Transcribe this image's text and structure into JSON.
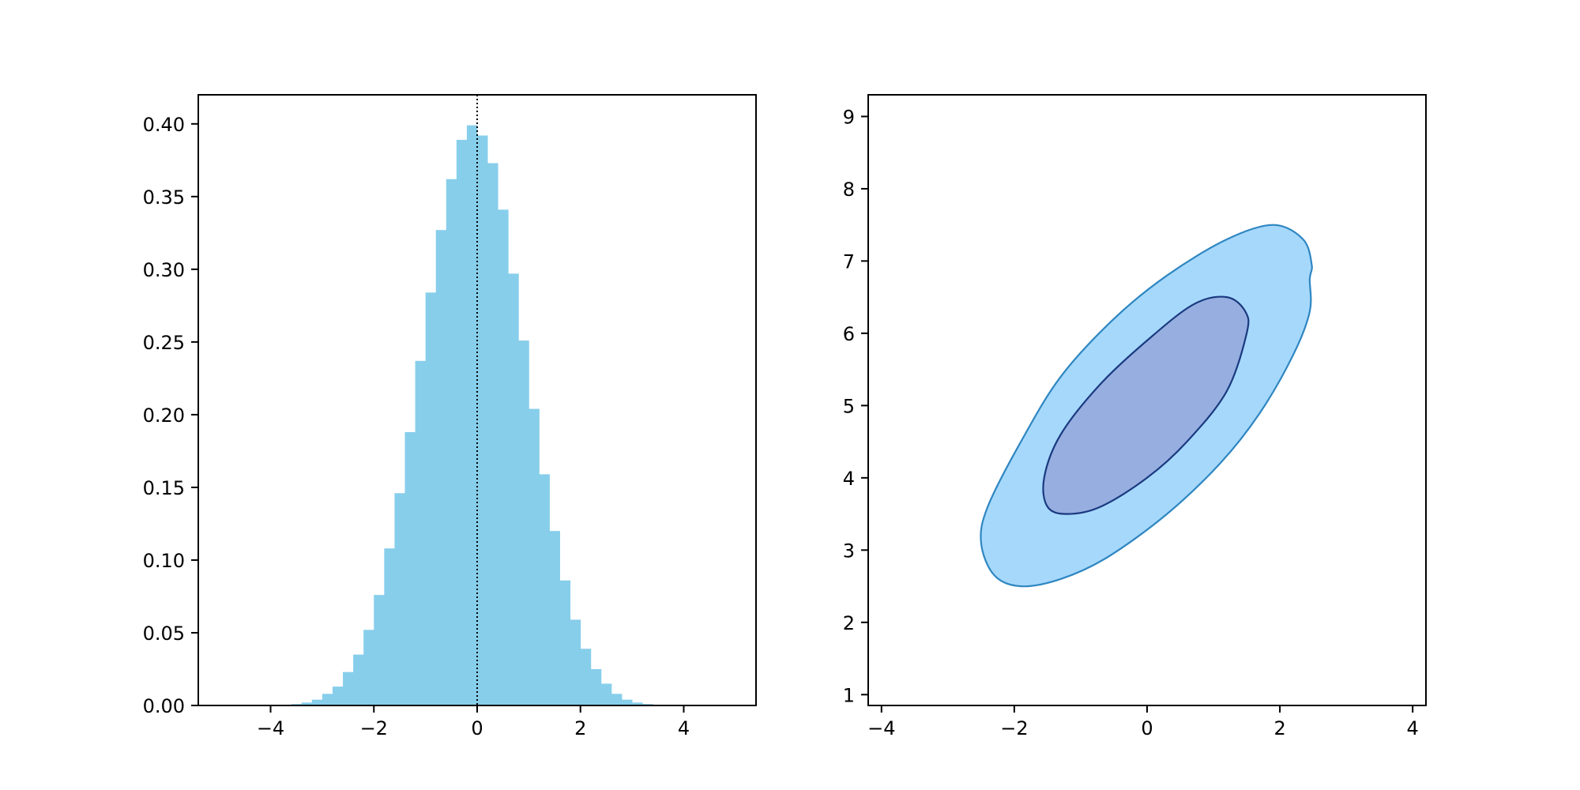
{
  "colors": {
    "histogram_fill": "#87ceeb",
    "median_line": "#000000",
    "contour_outer_fill": "#a6d8fb",
    "contour_outer_stroke": "#2e86c1",
    "contour_inner_fill": "#97afe0",
    "contour_inner_stroke": "#1a3a80"
  },
  "chart_data": [
    {
      "type": "bar",
      "subtype": "histogram",
      "title": "",
      "xlabel": "",
      "ylabel": "",
      "xlim": [
        -5.4,
        5.4
      ],
      "ylim": [
        0,
        0.42
      ],
      "x_ticks": [
        -4,
        -2,
        0,
        2,
        4
      ],
      "x_tick_labels": [
        "−4",
        "−2",
        "0",
        "2",
        "4"
      ],
      "y_ticks": [
        0,
        0.05,
        0.1,
        0.15,
        0.2,
        0.25,
        0.3,
        0.35,
        0.4
      ],
      "y_tick_labels": [
        "0.00",
        "0.05",
        "0.10",
        "0.15",
        "0.20",
        "0.25",
        "0.30",
        "0.35",
        "0.40"
      ],
      "bin_width": 0.2,
      "bin_edges_start": -3.6,
      "values": [
        0.001,
        0.002,
        0.004,
        0.008,
        0.013,
        0.023,
        0.035,
        0.052,
        0.076,
        0.108,
        0.146,
        0.188,
        0.237,
        0.284,
        0.327,
        0.362,
        0.389,
        0.399,
        0.392,
        0.373,
        0.341,
        0.297,
        0.251,
        0.204,
        0.159,
        0.12,
        0.086,
        0.059,
        0.039,
        0.025,
        0.015,
        0.008,
        0.004,
        0.002,
        0.001,
        0.0005
      ],
      "vertical_line": {
        "x": 0,
        "style": "dotted"
      },
      "grid": false
    },
    {
      "type": "contour",
      "title": "",
      "xlabel": "",
      "ylabel": "",
      "xlim": [
        -4.2,
        4.2
      ],
      "ylim": [
        0.85,
        9.3
      ],
      "x_ticks": [
        -4,
        -2,
        0,
        2,
        4
      ],
      "x_tick_labels": [
        "−4",
        "−2",
        "0",
        "2",
        "4"
      ],
      "y_ticks": [
        1,
        2,
        3,
        4,
        5,
        6,
        7,
        8,
        9
      ],
      "y_tick_labels": [
        "1",
        "2",
        "3",
        "4",
        "5",
        "6",
        "7",
        "8",
        "9"
      ],
      "grid": false,
      "levels": [
        {
          "name": "outer",
          "points": [
            [
              2.45,
              6.75
            ],
            [
              2.48,
              6.95
            ],
            [
              2.35,
              7.3
            ],
            [
              1.9,
              7.5
            ],
            [
              1.2,
              7.3
            ],
            [
              0.3,
              6.8
            ],
            [
              -0.5,
              6.2
            ],
            [
              -1.3,
              5.4
            ],
            [
              -1.9,
              4.5
            ],
            [
              -2.4,
              3.6
            ],
            [
              -2.5,
              3.1
            ],
            [
              -2.3,
              2.65
            ],
            [
              -1.9,
              2.5
            ],
            [
              -1.3,
              2.6
            ],
            [
              -0.6,
              2.9
            ],
            [
              0.3,
              3.5
            ],
            [
              1.1,
              4.2
            ],
            [
              1.7,
              4.9
            ],
            [
              2.2,
              5.7
            ],
            [
              2.45,
              6.3
            ]
          ]
        },
        {
          "name": "inner",
          "points": [
            [
              1.5,
              6.0
            ],
            [
              1.48,
              6.3
            ],
            [
              1.2,
              6.5
            ],
            [
              0.7,
              6.4
            ],
            [
              0.0,
              5.9
            ],
            [
              -0.7,
              5.3
            ],
            [
              -1.3,
              4.6
            ],
            [
              -1.55,
              4.0
            ],
            [
              -1.5,
              3.6
            ],
            [
              -1.2,
              3.5
            ],
            [
              -0.7,
              3.6
            ],
            [
              0.0,
              4.0
            ],
            [
              0.6,
              4.5
            ],
            [
              1.2,
              5.2
            ]
          ]
        }
      ]
    }
  ]
}
